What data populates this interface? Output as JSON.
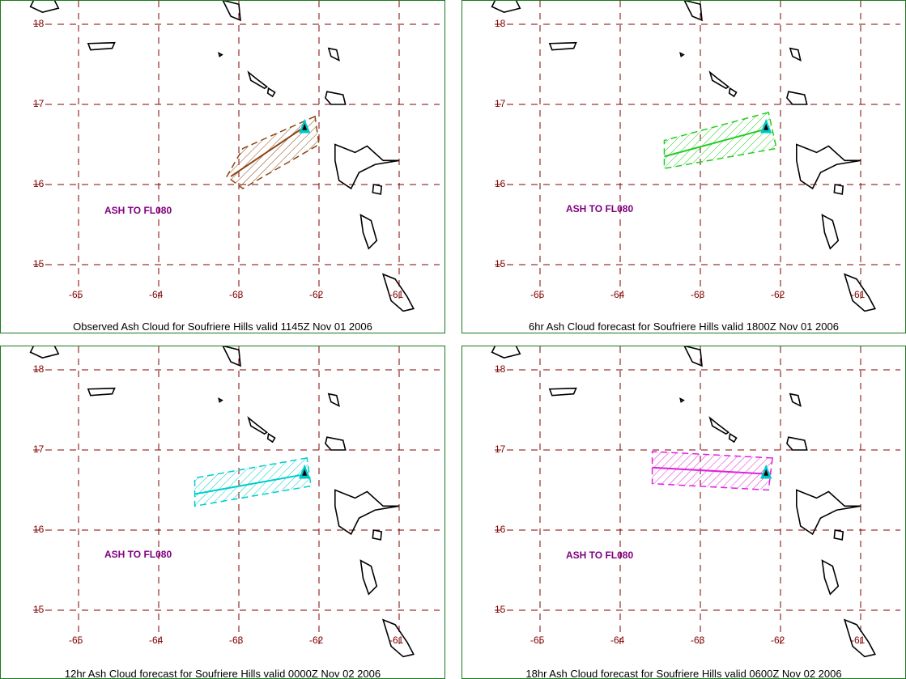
{
  "colors": {
    "border": "#1a7a1a",
    "grid": "#800000",
    "label": "#800000",
    "annotation": "#800080",
    "volcano": "#00c8c8",
    "coast": "#000000"
  },
  "common": {
    "lat_ticks": [
      "18",
      "17",
      "16",
      "15"
    ],
    "lon_ticks": [
      "-65",
      "-64",
      "-63",
      "-62",
      "-61"
    ],
    "lat_values": [
      18,
      17,
      16,
      15
    ],
    "lon_values": [
      -65,
      -64,
      -63,
      -62,
      -61
    ],
    "volcano": {
      "lon": -62.18,
      "lat": 16.72,
      "icon": "volcano-triangle-icon"
    }
  },
  "panels": [
    {
      "caption": "Observed Ash Cloud for Soufriere  Hills valid 1145Z Nov 01 2006",
      "annotation": "ASH TO FL080",
      "cloud_color": "#8b4513",
      "cloud_polygon": [
        [
          -62.05,
          16.85
        ],
        [
          -62.95,
          16.45
        ],
        [
          -63.15,
          16.1
        ],
        [
          -62.95,
          15.95
        ],
        [
          -62.0,
          16.5
        ]
      ],
      "centerline": [
        [
          -62.18,
          16.72
        ],
        [
          -63.1,
          16.1
        ]
      ]
    },
    {
      "caption": "6hr Ash Cloud forecast for Soufriere  Hills valid 1800Z Nov 01 2006",
      "annotation": "ASH TO FL080",
      "cloud_color": "#22cc22",
      "cloud_polygon": [
        [
          -62.15,
          16.9
        ],
        [
          -63.45,
          16.55
        ],
        [
          -63.45,
          16.2
        ],
        [
          -62.05,
          16.45
        ]
      ],
      "centerline": [
        [
          -62.15,
          16.7
        ],
        [
          -63.45,
          16.35
        ]
      ]
    },
    {
      "caption": "12hr Ash Cloud forecast for Soufriere  Hills valid 0000Z Nov 02 2006",
      "annotation": "ASH TO FL080",
      "cloud_color": "#00cccc",
      "cloud_polygon": [
        [
          -62.15,
          16.9
        ],
        [
          -63.55,
          16.65
        ],
        [
          -63.55,
          16.3
        ],
        [
          -62.1,
          16.55
        ]
      ],
      "centerline": [
        [
          -62.15,
          16.7
        ],
        [
          -63.55,
          16.45
        ]
      ]
    },
    {
      "caption": "18hr Ash Cloud forecast for Soufriere  Hills valid 0600Z Nov 02 2006",
      "annotation": "ASH TO FL080",
      "cloud_color": "#e020e0",
      "cloud_polygon": [
        [
          -62.1,
          16.9
        ],
        [
          -63.6,
          16.98
        ],
        [
          -63.6,
          16.58
        ],
        [
          -62.15,
          16.5
        ]
      ],
      "centerline": [
        [
          -62.15,
          16.7
        ],
        [
          -63.6,
          16.78
        ]
      ]
    }
  ]
}
